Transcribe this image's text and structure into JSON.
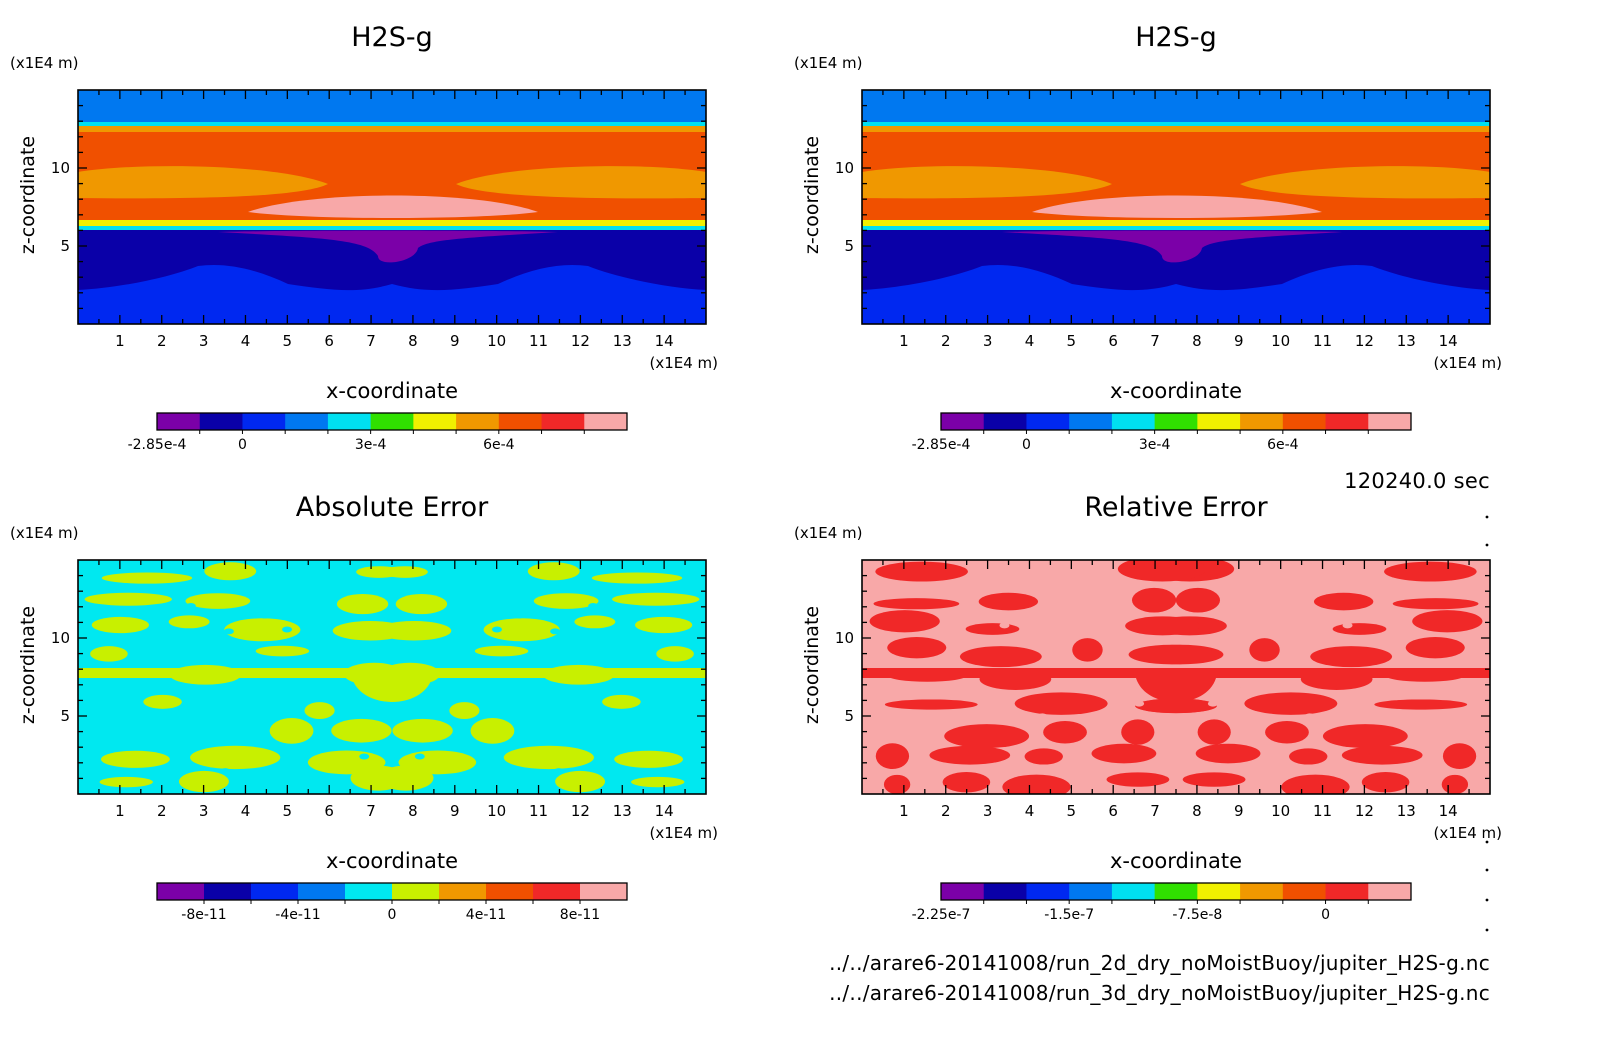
{
  "time_label": "120240.0 sec",
  "file_paths": [
    "../../arare6-20141008/run_2d_dry_noMoistBuoy/jupiter_H2S-g.nc",
    "../../arare6-20141008/run_3d_dry_noMoistBuoy/jupiter_H2S-g.nc"
  ],
  "chart_data": [
    {
      "type": "heatmap",
      "title": "H2S-g",
      "xlabel": "x-coordinate",
      "ylabel": "z-coordinate",
      "x_unit": "(x1E4 m)",
      "y_unit": "(x1E4 m)",
      "x_ticks": [
        "1",
        "2",
        "3",
        "4",
        "5",
        "6",
        "7",
        "8",
        "9",
        "10",
        "11",
        "12",
        "13",
        "14"
      ],
      "y_ticks": [
        "5",
        "10"
      ],
      "xlim": [
        0,
        15
      ],
      "ylim": [
        0,
        15
      ],
      "colorbar": {
        "colors": [
          "#7b00a8",
          "#0a00a8",
          "#0028f0",
          "#0078f0",
          "#00e0f0",
          "#30e000",
          "#f0f000",
          "#f09800",
          "#f05000",
          "#f02828",
          "#f8a8a8"
        ],
        "tick_labels": [
          "-2.85e-4",
          "0",
          "3e-4",
          "6e-4"
        ],
        "tick_index": [
          0,
          2,
          5,
          8
        ]
      },
      "pattern": "h2s"
    },
    {
      "type": "heatmap",
      "title": "H2S-g",
      "xlabel": "x-coordinate",
      "ylabel": "z-coordinate",
      "x_unit": "(x1E4 m)",
      "y_unit": "(x1E4 m)",
      "x_ticks": [
        "1",
        "2",
        "3",
        "4",
        "5",
        "6",
        "7",
        "8",
        "9",
        "10",
        "11",
        "12",
        "13",
        "14"
      ],
      "y_ticks": [
        "5",
        "10"
      ],
      "xlim": [
        0,
        15
      ],
      "ylim": [
        0,
        15
      ],
      "colorbar": {
        "colors": [
          "#7b00a8",
          "#0a00a8",
          "#0028f0",
          "#0078f0",
          "#00e0f0",
          "#30e000",
          "#f0f000",
          "#f09800",
          "#f05000",
          "#f02828",
          "#f8a8a8"
        ],
        "tick_labels": [
          "-2.85e-4",
          "0",
          "3e-4",
          "6e-4"
        ],
        "tick_index": [
          0,
          2,
          5,
          8
        ]
      },
      "pattern": "h2s"
    },
    {
      "type": "heatmap",
      "title": "Absolute Error",
      "xlabel": "x-coordinate",
      "ylabel": "z-coordinate",
      "x_unit": "(x1E4 m)",
      "y_unit": "(x1E4 m)",
      "x_ticks": [
        "1",
        "2",
        "3",
        "4",
        "5",
        "6",
        "7",
        "8",
        "9",
        "10",
        "11",
        "12",
        "13",
        "14"
      ],
      "y_ticks": [
        "5",
        "10"
      ],
      "xlim": [
        0,
        15
      ],
      "ylim": [
        0,
        15
      ],
      "colorbar": {
        "colors": [
          "#7b00a8",
          "#0a00a8",
          "#0028f0",
          "#0078f0",
          "#00e8f0",
          "#c8f000",
          "#f09800",
          "#f05000",
          "#f02828",
          "#f8a8a8"
        ],
        "tick_labels": [
          "-8e-11",
          "-4e-11",
          "0",
          "4e-11",
          "8e-11"
        ],
        "tick_index": [
          1,
          3,
          5,
          7,
          9
        ]
      },
      "pattern": "abs",
      "field_colors": [
        "#00e8f0",
        "#c8f000"
      ]
    },
    {
      "type": "heatmap",
      "title": "Relative Error",
      "xlabel": "x-coordinate",
      "ylabel": "z-coordinate",
      "x_unit": "(x1E4 m)",
      "y_unit": "(x1E4 m)",
      "x_ticks": [
        "1",
        "2",
        "3",
        "4",
        "5",
        "6",
        "7",
        "8",
        "9",
        "10",
        "11",
        "12",
        "13",
        "14"
      ],
      "y_ticks": [
        "5",
        "10"
      ],
      "xlim": [
        0,
        15
      ],
      "ylim": [
        0,
        15
      ],
      "colorbar": {
        "colors": [
          "#7b00a8",
          "#0a00a8",
          "#0028f0",
          "#0078f0",
          "#00e0f0",
          "#30e000",
          "#f0f000",
          "#f09800",
          "#f05000",
          "#f02828",
          "#f8a8a8"
        ],
        "tick_labels": [
          "-2.25e-7",
          "-1.5e-7",
          "-7.5e-8",
          "0"
        ],
        "tick_index": [
          0,
          3,
          6,
          9
        ]
      },
      "pattern": "rel",
      "field_colors": [
        "#f8a8a8",
        "#f02828"
      ]
    }
  ]
}
